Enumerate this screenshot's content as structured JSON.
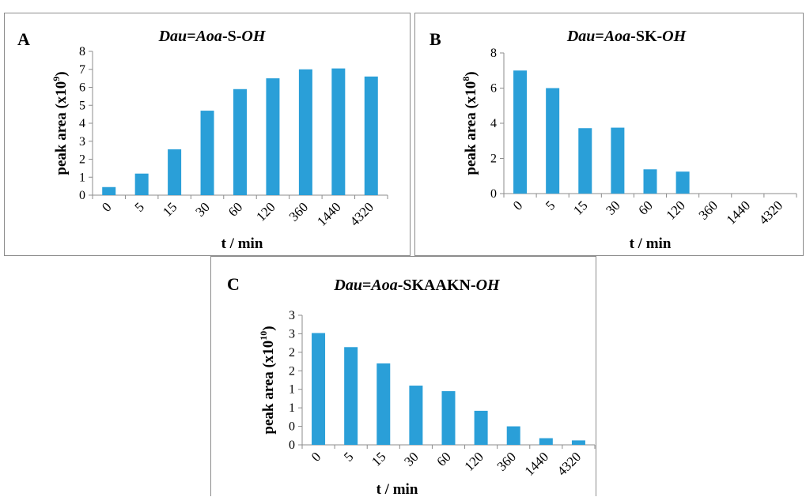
{
  "chart_data": [
    {
      "type": "bar",
      "panel_letter": "A",
      "title_parts": [
        "Dau",
        "=",
        "Aoa",
        "-S-",
        "OH"
      ],
      "categories": [
        "0",
        "5",
        "15",
        "30",
        "60",
        "120",
        "360",
        "1440",
        "4320"
      ],
      "values": [
        0.45,
        1.2,
        2.55,
        4.7,
        5.9,
        6.5,
        7.0,
        7.05,
        6.6
      ],
      "xlabel": "t / min",
      "ylabel_main": "peak area (x10",
      "ylabel_exp": "9",
      "ylabel_end": ")",
      "ylim": [
        0,
        8
      ],
      "yticks": [
        "0",
        "1",
        "2",
        "3",
        "4",
        "5",
        "6",
        "7",
        "8"
      ],
      "grid": false,
      "color": "#2a9fd8"
    },
    {
      "type": "bar",
      "panel_letter": "B",
      "title_parts": [
        "Dau",
        "=",
        "Aoa",
        "-SK-",
        "OH"
      ],
      "categories": [
        "0",
        "5",
        "15",
        "30",
        "60",
        "120",
        "360",
        "1440",
        "4320"
      ],
      "values": [
        7.0,
        6.0,
        3.72,
        3.75,
        1.38,
        1.25,
        0,
        0,
        0
      ],
      "xlabel": "t / min",
      "ylabel_main": "peak area (x10",
      "ylabel_exp": "8",
      "ylabel_end": ")",
      "ylim": [
        0,
        8
      ],
      "yticks": [
        "0",
        "2",
        "4",
        "6",
        "8"
      ],
      "grid": false,
      "color": "#2a9fd8"
    },
    {
      "type": "bar",
      "panel_letter": "C",
      "title_parts": [
        "Dau",
        "=",
        "Aoa",
        "-SKAAKN-",
        "OH"
      ],
      "categories": [
        "0",
        "5",
        "15",
        "30",
        "60",
        "120",
        "360",
        "1440",
        "4320"
      ],
      "values": [
        3.02,
        2.64,
        2.2,
        1.6,
        1.45,
        0.92,
        0.5,
        0.18,
        0.12
      ],
      "xlabel": "t / min",
      "ylabel_main": "peak area (x10",
      "ylabel_exp": "10",
      "ylabel_end": ")",
      "ylim": [
        0,
        3.5
      ],
      "yticks": [
        "0",
        "0",
        "1",
        "1",
        "2",
        "2",
        "3",
        "3"
      ],
      "grid": false,
      "color": "#2a9fd8"
    }
  ]
}
